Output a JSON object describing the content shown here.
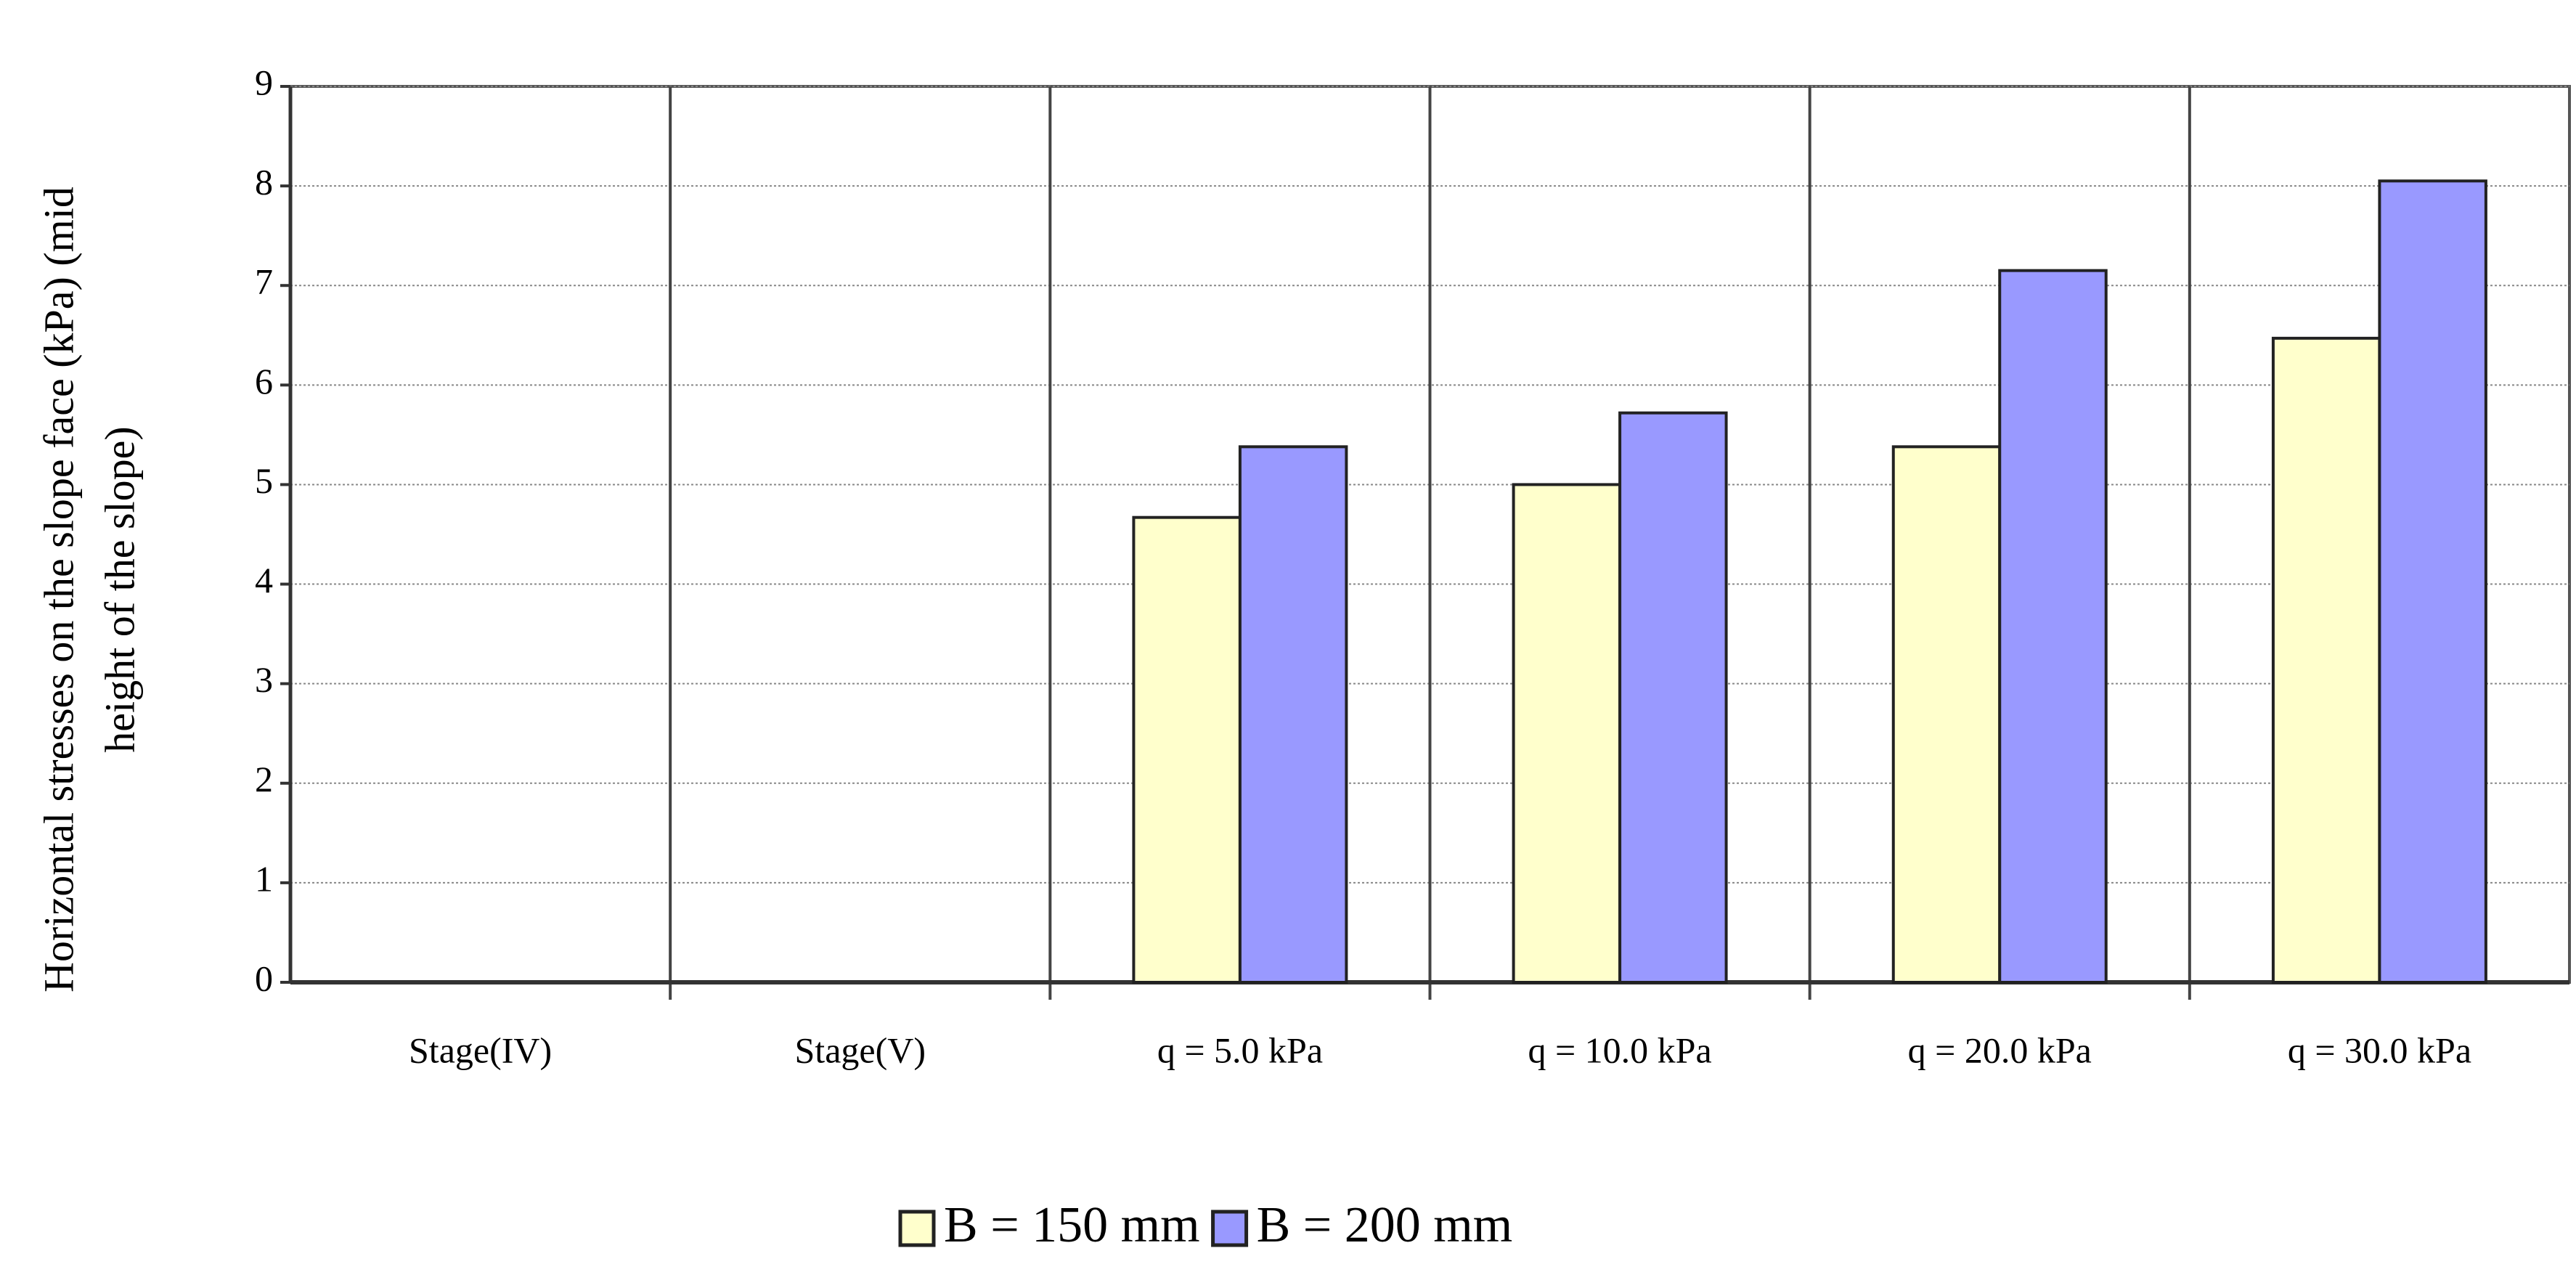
{
  "chart_data": {
    "type": "bar",
    "ylabel": [
      "Horizontal stresses on the slope face (kPa) (mid",
      "height of the slope)"
    ],
    "categories": [
      "Stage(IV)",
      "Stage(V)",
      "q = 5.0 kPa",
      "q = 10.0 kPa",
      "q = 20.0 kPa",
      "q = 30.0 kPa"
    ],
    "series": [
      {
        "name": "B = 150 mm",
        "color": "#ffffcc",
        "values": [
          null,
          null,
          4.67,
          5.0,
          5.38,
          6.47
        ]
      },
      {
        "name": "B = 200 mm",
        "color": "#9999ff",
        "values": [
          null,
          null,
          5.38,
          5.72,
          7.15,
          8.05
        ]
      }
    ],
    "ylim": [
      0,
      9
    ],
    "yticks": [
      0,
      1,
      2,
      3,
      4,
      5,
      6,
      7,
      8,
      9
    ],
    "grid": true,
    "legend": "bottom"
  }
}
